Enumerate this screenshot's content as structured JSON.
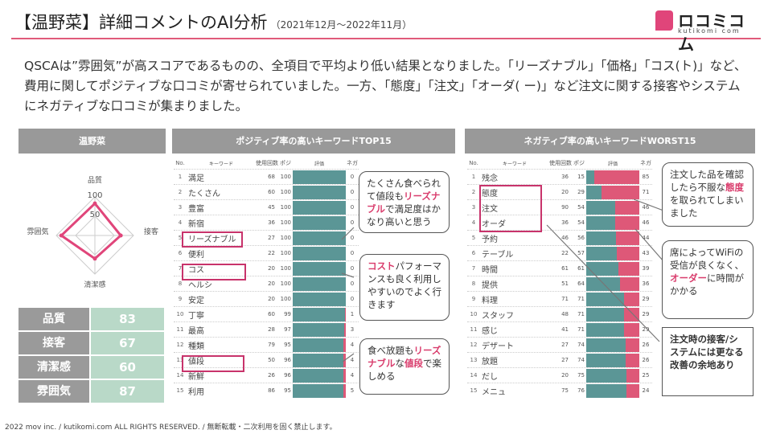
{
  "title": {
    "main": "【温野菜】詳細コメントのAI分析",
    "period": "（2021年12月～2022年11月）"
  },
  "logo": {
    "word": "ロコミコム",
    "sub": "kutikomi com"
  },
  "summary": "QSCAは”雰囲気”が高スコアであるものの、全項目で平均より低い結果となりました。「リーズナブル」「価格」「コス(ト)」など、費用に関してポジティブな口コミが寄せられていました。一方、「態度」「注文」「オーダ( ー)」など注文に関する接客やシステムにネガティブな口コミが集まりました。",
  "headers": {
    "store": "温野菜",
    "positive": "ポジティブ率の高いキーワードTOP15",
    "negative": "ネガティブ率の高いキーワードWORST15"
  },
  "radar": {
    "axes": [
      "品質",
      "接客",
      "清潔感",
      "雰囲気"
    ],
    "ticks": [
      "100",
      "50"
    ],
    "values": [
      83,
      67,
      60,
      87
    ]
  },
  "scores": [
    {
      "label": "品質",
      "value": "83"
    },
    {
      "label": "接客",
      "value": "67"
    },
    {
      "label": "清潔感",
      "value": "60"
    },
    {
      "label": "雰囲気",
      "value": "87"
    }
  ],
  "table_headers": {
    "no": "No.",
    "keyword": "キーワード",
    "count": "使用回数",
    "pos": "ポジ",
    "eval": "評価",
    "neg": "ネガ"
  },
  "positive_rows": [
    {
      "no": "1",
      "kw": "満足",
      "count": "68",
      "pos": "100",
      "neg": "0",
      "neg_share": 0
    },
    {
      "no": "2",
      "kw": "たくさん",
      "count": "60",
      "pos": "100",
      "neg": "0",
      "neg_share": 0
    },
    {
      "no": "3",
      "kw": "豊富",
      "count": "45",
      "pos": "100",
      "neg": "0",
      "neg_share": 0
    },
    {
      "no": "4",
      "kw": "新宿",
      "count": "36",
      "pos": "100",
      "neg": "0",
      "neg_share": 0
    },
    {
      "no": "5",
      "kw": "リーズナブル",
      "count": "27",
      "pos": "100",
      "neg": "0",
      "neg_share": 0
    },
    {
      "no": "6",
      "kw": "便利",
      "count": "22",
      "pos": "100",
      "neg": "0",
      "neg_share": 0
    },
    {
      "no": "7",
      "kw": "コス",
      "count": "20",
      "pos": "100",
      "neg": "0",
      "neg_share": 0
    },
    {
      "no": "8",
      "kw": "ヘルシ",
      "count": "20",
      "pos": "100",
      "neg": "0",
      "neg_share": 0
    },
    {
      "no": "9",
      "kw": "安定",
      "count": "20",
      "pos": "100",
      "neg": "0",
      "neg_share": 0
    },
    {
      "no": "10",
      "kw": "丁寧",
      "count": "60",
      "pos": "99",
      "neg": "1",
      "neg_share": 0.01
    },
    {
      "no": "11",
      "kw": "最高",
      "count": "28",
      "pos": "97",
      "neg": "3",
      "neg_share": 0.03
    },
    {
      "no": "12",
      "kw": "種類",
      "count": "79",
      "pos": "95",
      "neg": "4",
      "neg_share": 0.04
    },
    {
      "no": "13",
      "kw": "値段",
      "count": "50",
      "pos": "96",
      "neg": "4",
      "neg_share": 0.04
    },
    {
      "no": "14",
      "kw": "新鮮",
      "count": "26",
      "pos": "96",
      "neg": "4",
      "neg_share": 0.04
    },
    {
      "no": "15",
      "kw": "利用",
      "count": "86",
      "pos": "95",
      "neg": "5",
      "neg_share": 0.05
    }
  ],
  "negative_rows": [
    {
      "no": "1",
      "kw": "残念",
      "count": "36",
      "pos": "15",
      "neg": "85",
      "neg_share": 0.85
    },
    {
      "no": "2",
      "kw": "態度",
      "count": "20",
      "pos": "29",
      "neg": "71",
      "neg_share": 0.71
    },
    {
      "no": "3",
      "kw": "注文",
      "count": "90",
      "pos": "54",
      "neg": "46",
      "neg_share": 0.46
    },
    {
      "no": "4",
      "kw": "オーダ",
      "count": "36",
      "pos": "54",
      "neg": "46",
      "neg_share": 0.46
    },
    {
      "no": "5",
      "kw": "予約",
      "count": "46",
      "pos": "56",
      "neg": "44",
      "neg_share": 0.44
    },
    {
      "no": "6",
      "kw": "テーブル",
      "count": "22",
      "pos": "57",
      "neg": "43",
      "neg_share": 0.43
    },
    {
      "no": "7",
      "kw": "時間",
      "count": "61",
      "pos": "61",
      "neg": "39",
      "neg_share": 0.39
    },
    {
      "no": "8",
      "kw": "提供",
      "count": "51",
      "pos": "64",
      "neg": "36",
      "neg_share": 0.36
    },
    {
      "no": "9",
      "kw": "料理",
      "count": "71",
      "pos": "71",
      "neg": "29",
      "neg_share": 0.29
    },
    {
      "no": "10",
      "kw": "スタッフ",
      "count": "48",
      "pos": "71",
      "neg": "29",
      "neg_share": 0.29
    },
    {
      "no": "11",
      "kw": "感じ",
      "count": "41",
      "pos": "71",
      "neg": "29",
      "neg_share": 0.29
    },
    {
      "no": "12",
      "kw": "デザート",
      "count": "27",
      "pos": "74",
      "neg": "26",
      "neg_share": 0.26
    },
    {
      "no": "13",
      "kw": "放題",
      "count": "27",
      "pos": "74",
      "neg": "26",
      "neg_share": 0.26
    },
    {
      "no": "14",
      "kw": "だし",
      "count": "20",
      "pos": "75",
      "neg": "25",
      "neg_share": 0.25
    },
    {
      "no": "15",
      "kw": "メニュ",
      "count": "75",
      "pos": "76",
      "neg": "24",
      "neg_share": 0.24
    }
  ],
  "bubbles": {
    "pos1": {
      "pre": "たくさん食べられて値段も",
      "em": "リーズナブル",
      "post": "で満足度はかなり高いと思う"
    },
    "pos2": {
      "em": "コスト",
      "post": "パフォーマンスも良く利用しやすいのでよく行きます"
    },
    "pos3": {
      "pre": "食べ放題も",
      "em": "リーズナブル",
      "mid": "な",
      "em2": "値段",
      "post": "で楽しめる"
    },
    "neg1": {
      "pre": "注文した品を確認したら不服な",
      "em": "態度",
      "post": "を取られてしまいました"
    },
    "neg2": {
      "pre": "席によってWiFiの受信が良くなく、",
      "em": "オーダー",
      "post": "に時間がかかる"
    },
    "neg3": {
      "text": "注文時の接客/システムには更なる改善の余地あり"
    }
  },
  "footer": "2022 mov inc. / kutikomi.com ALL RIGHTS RESERVED. / 無断転載・二次利用を固く禁止します。",
  "colors": {
    "accent": "#e05a7a",
    "bar_pos": "#5b9696",
    "bar_neg": "#de5878",
    "score_bg": "#b9d9c8"
  }
}
